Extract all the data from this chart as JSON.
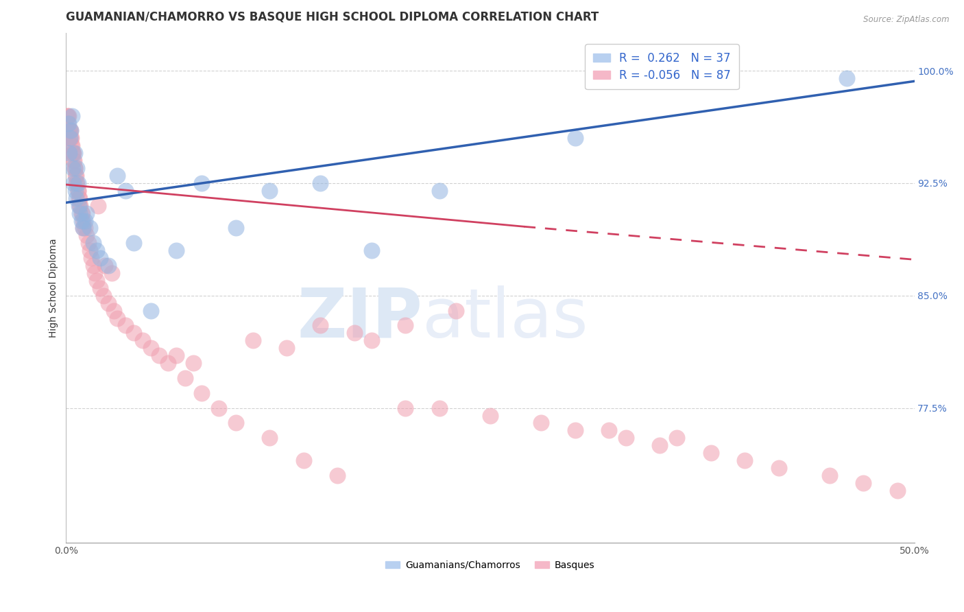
{
  "title": "GUAMANIAN/CHAMORRO VS BASQUE HIGH SCHOOL DIPLOMA CORRELATION CHART",
  "source": "Source: ZipAtlas.com",
  "ylabel": "High School Diploma",
  "y_tick_labels": [
    "77.5%",
    "85.0%",
    "92.5%",
    "100.0%"
  ],
  "y_ticks": [
    0.775,
    0.85,
    0.925,
    1.0
  ],
  "xlim": [
    0.0,
    50.0
  ],
  "ylim": [
    0.685,
    1.025
  ],
  "blue_color": "#92b4e0",
  "pink_color": "#f0a0b0",
  "blue_edge_color": "#6090c8",
  "pink_edge_color": "#e07090",
  "blue_line_color": "#3060b0",
  "pink_line_color": "#d04060",
  "watermark_zip": "ZIP",
  "watermark_atlas": "atlas",
  "grid_color": "#cccccc",
  "background_color": "#ffffff",
  "title_fontsize": 12,
  "axis_label_fontsize": 10,
  "tick_fontsize": 10,
  "legend_fontsize": 12,
  "blue_line": {
    "x0": 0.0,
    "x1": 50.0,
    "y0": 0.912,
    "y1": 0.993
  },
  "pink_line_solid": {
    "x0": 0.0,
    "x1": 27.0,
    "y0": 0.924,
    "y1": 0.896
  },
  "pink_line_dashed": {
    "x0": 27.0,
    "x1": 50.0,
    "y0": 0.896,
    "y1": 0.874
  },
  "blue_x": [
    0.15,
    0.18,
    0.22,
    0.28,
    0.35,
    0.4,
    0.45,
    0.5,
    0.55,
    0.6,
    0.65,
    0.7,
    0.75,
    0.8,
    0.9,
    1.0,
    1.1,
    1.2,
    1.4,
    1.6,
    1.8,
    2.0,
    2.5,
    3.0,
    3.5,
    4.0,
    5.0,
    6.5,
    8.0,
    10.0,
    12.0,
    15.0,
    18.0,
    22.0,
    30.0,
    46.0
  ],
  "blue_y": [
    0.965,
    0.945,
    0.955,
    0.96,
    0.97,
    0.935,
    0.925,
    0.945,
    0.92,
    0.915,
    0.935,
    0.925,
    0.91,
    0.905,
    0.9,
    0.895,
    0.9,
    0.905,
    0.895,
    0.885,
    0.88,
    0.875,
    0.87,
    0.93,
    0.92,
    0.885,
    0.84,
    0.88,
    0.925,
    0.895,
    0.92,
    0.925,
    0.88,
    0.92,
    0.955,
    0.995
  ],
  "pink_x": [
    0.05,
    0.08,
    0.1,
    0.12,
    0.15,
    0.18,
    0.2,
    0.22,
    0.25,
    0.28,
    0.3,
    0.32,
    0.35,
    0.38,
    0.4,
    0.42,
    0.45,
    0.48,
    0.5,
    0.52,
    0.55,
    0.58,
    0.6,
    0.65,
    0.7,
    0.72,
    0.75,
    0.78,
    0.8,
    0.85,
    0.9,
    0.95,
    1.0,
    1.1,
    1.2,
    1.3,
    1.4,
    1.5,
    1.6,
    1.7,
    1.8,
    2.0,
    2.2,
    2.5,
    2.8,
    3.0,
    3.5,
    4.0,
    4.5,
    5.0,
    5.5,
    6.0,
    7.0,
    8.0,
    9.0,
    10.0,
    12.0,
    14.0,
    16.0,
    18.0,
    20.0,
    22.0,
    25.0,
    28.0,
    30.0,
    33.0,
    35.0,
    38.0,
    40.0,
    42.0,
    45.0,
    47.0,
    49.0,
    32.0,
    36.0,
    20.0,
    23.0,
    15.0,
    17.0,
    11.0,
    13.0,
    6.5,
    7.5,
    2.3,
    2.7,
    1.9,
    1.0
  ],
  "pink_y": [
    0.96,
    0.97,
    0.965,
    0.97,
    0.97,
    0.96,
    0.955,
    0.96,
    0.955,
    0.96,
    0.955,
    0.95,
    0.95,
    0.945,
    0.945,
    0.94,
    0.945,
    0.94,
    0.935,
    0.935,
    0.93,
    0.93,
    0.925,
    0.925,
    0.92,
    0.92,
    0.915,
    0.915,
    0.91,
    0.91,
    0.905,
    0.905,
    0.9,
    0.895,
    0.89,
    0.885,
    0.88,
    0.875,
    0.87,
    0.865,
    0.86,
    0.855,
    0.85,
    0.845,
    0.84,
    0.835,
    0.83,
    0.825,
    0.82,
    0.815,
    0.81,
    0.805,
    0.795,
    0.785,
    0.775,
    0.765,
    0.755,
    0.74,
    0.73,
    0.82,
    0.775,
    0.775,
    0.77,
    0.765,
    0.76,
    0.755,
    0.75,
    0.745,
    0.74,
    0.735,
    0.73,
    0.725,
    0.72,
    0.76,
    0.755,
    0.83,
    0.84,
    0.83,
    0.825,
    0.82,
    0.815,
    0.81,
    0.805,
    0.87,
    0.865,
    0.91,
    0.895
  ]
}
